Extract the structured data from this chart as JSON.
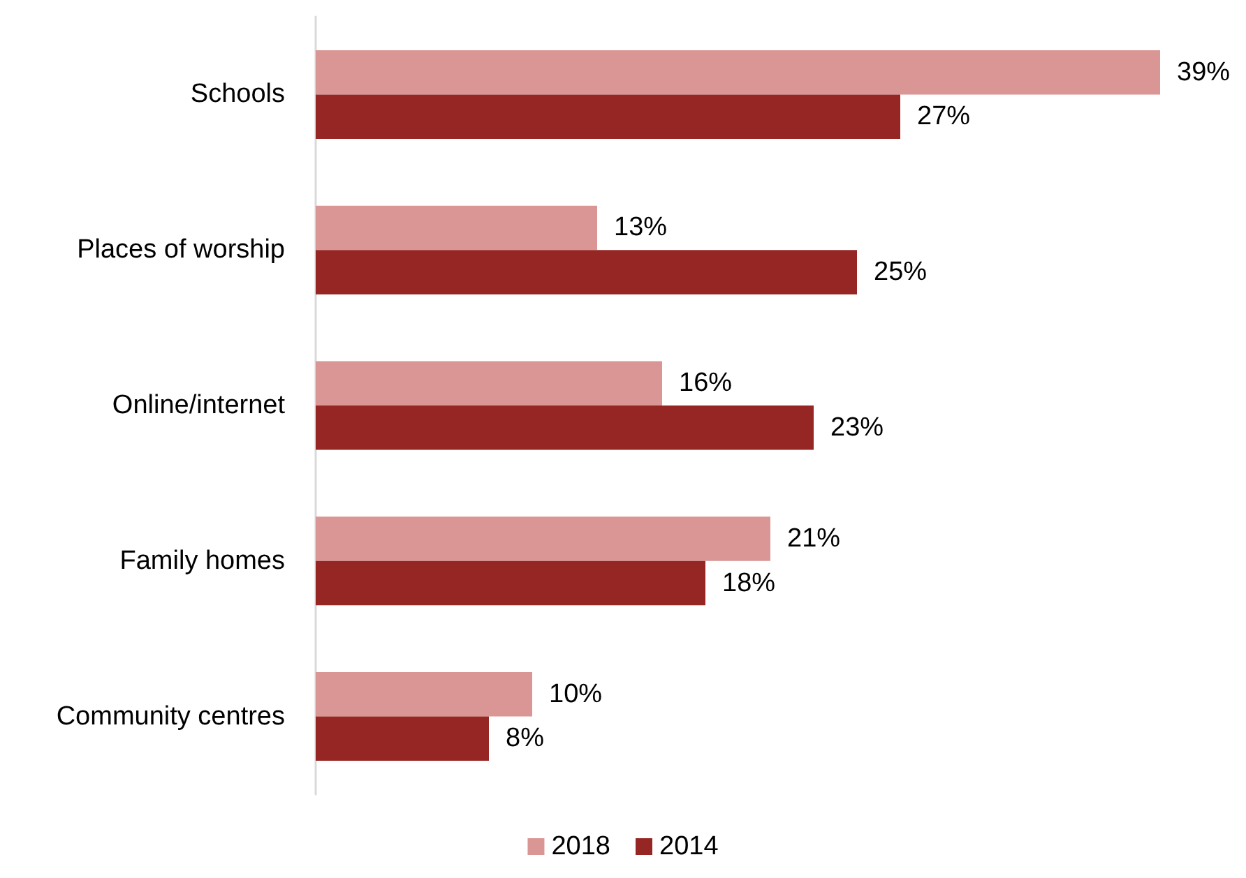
{
  "chart_data": {
    "type": "bar",
    "orientation": "horizontal",
    "categories": [
      "Schools",
      "Places of worship",
      "Online/internet",
      "Family homes",
      "Community centres"
    ],
    "series": [
      {
        "name": "2018",
        "color": "#da9694",
        "values": [
          39,
          13,
          16,
          21,
          10
        ],
        "value_labels": [
          "39%",
          "13%",
          "16%",
          "21%",
          "10%"
        ]
      },
      {
        "name": "2014",
        "color": "#962624",
        "values": [
          27,
          25,
          23,
          18,
          8
        ],
        "value_labels": [
          "27%",
          "25%",
          "23%",
          "18%",
          "8%"
        ]
      }
    ],
    "tick_labels": "y",
    "grid": false,
    "legend": "bottom"
  }
}
